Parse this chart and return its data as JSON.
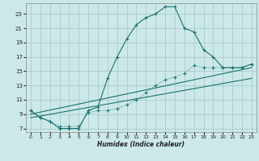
{
  "xlabel": "Humidex (Indice chaleur)",
  "bg_color": "#cce8e8",
  "grid_color": "#aacccc",
  "line_color": "#1a7070",
  "xlim": [
    -0.5,
    23.5
  ],
  "ylim": [
    6.5,
    24.5
  ],
  "xticks": [
    0,
    1,
    2,
    3,
    4,
    5,
    6,
    7,
    8,
    9,
    10,
    11,
    12,
    13,
    14,
    15,
    16,
    17,
    18,
    19,
    20,
    21,
    22,
    23
  ],
  "yticks": [
    7,
    9,
    11,
    13,
    15,
    17,
    19,
    21,
    23
  ],
  "curve1_x": [
    0,
    1,
    2,
    3,
    4,
    5,
    6,
    7,
    8,
    9,
    10,
    11,
    12,
    13,
    14,
    15,
    16,
    17,
    18,
    19,
    20,
    21,
    22,
    23
  ],
  "curve1_y": [
    9.5,
    8.5,
    8.0,
    7.0,
    7.0,
    7.0,
    9.5,
    10.0,
    14.0,
    17.0,
    19.5,
    21.5,
    22.5,
    23.0,
    24.0,
    24.0,
    21.0,
    20.5,
    18.0,
    17.0,
    15.5,
    15.5,
    15.5,
    16.0
  ],
  "curve2_x": [
    0,
    1,
    2,
    3,
    4,
    5,
    6,
    7,
    8,
    9,
    10,
    11,
    12,
    13,
    14,
    15,
    16,
    17,
    18,
    19,
    20,
    21,
    22,
    23
  ],
  "curve2_y": [
    9.5,
    8.5,
    8.0,
    7.3,
    7.3,
    7.3,
    9.2,
    9.5,
    9.5,
    9.8,
    10.3,
    11.0,
    12.0,
    13.0,
    13.8,
    14.2,
    14.7,
    15.8,
    15.5,
    15.5,
    15.5,
    15.5,
    15.5,
    16.0
  ],
  "line3_x": [
    0,
    23
  ],
  "line3_y": [
    9.0,
    15.5
  ],
  "line4_x": [
    0,
    23
  ],
  "line4_y": [
    8.5,
    14.0
  ]
}
